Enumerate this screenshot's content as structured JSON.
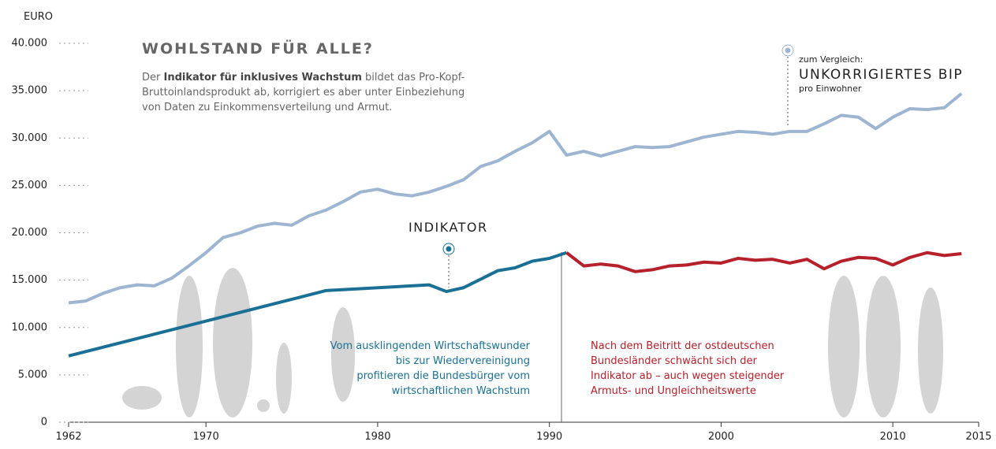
{
  "chart_data": {
    "type": "line",
    "title": "WOHLSTAND FÜR ALLE?",
    "description": {
      "line1": [
        "Der",
        "Indikator für inklusives Wachstum",
        "bildet das Pro-Kopf-"
      ],
      "lines": [
        "Bruttoinlandsprodukt ab, korrigiert es aber unter Einbeziehung",
        "von Daten zu Einkommensverteilung und Armut."
      ]
    },
    "y_axis_label": "EURO",
    "xlim": [
      1962,
      2015
    ],
    "xticks": [
      1962,
      1970,
      1980,
      1990,
      2000,
      2010,
      2015
    ],
    "ylim": [
      0,
      40000
    ],
    "yticks": [
      0,
      {
        "value": 5000,
        "label": "5.000"
      },
      {
        "value": 10000,
        "label": "10.000"
      },
      {
        "value": 15000,
        "label": "15.000"
      },
      {
        "value": 20000,
        "label": "20.000"
      },
      {
        "value": 25000,
        "label": "25.000"
      },
      {
        "value": 30000,
        "label": "30.000"
      },
      {
        "value": 35000,
        "label": "35.000"
      },
      {
        "value": 40000,
        "label": "40.000"
      }
    ],
    "series": [
      {
        "color": "#9db5d0",
        "x": [
          1962,
          1963,
          1964,
          1965,
          1966,
          1967,
          1968,
          1969,
          1970,
          1971,
          1972,
          1973,
          1974,
          1975,
          1976,
          1977,
          1978,
          1979,
          1980,
          1981,
          1982,
          1983,
          1984,
          1985,
          1986,
          1987,
          1988,
          1989,
          1990,
          1991,
          1992,
          1993,
          1994,
          1995,
          1996,
          1997,
          1998,
          1999,
          2000,
          2001,
          2002,
          2003,
          2004,
          2005,
          2006,
          2007,
          2008,
          2009,
          2010,
          2011,
          2012,
          2013,
          2014
        ],
        "values": [
          12600,
          12800,
          13600,
          14200,
          14500,
          14400,
          15200,
          16500,
          17900,
          19500,
          20000,
          20700,
          21000,
          20800,
          21800,
          22400,
          23300,
          24300,
          24600,
          24100,
          23900,
          24300,
          24900,
          25600,
          27000,
          27600,
          28600,
          29500,
          30700,
          28200,
          28600,
          28100,
          28600,
          29100,
          29000,
          29100,
          29600,
          30100,
          30400,
          30700,
          30600,
          30400,
          30700,
          30700,
          31500,
          32400,
          32200,
          31000,
          32200,
          33100,
          33000,
          33200,
          34700
        ]
      },
      {
        "color": "#1a7094",
        "x": [
          1962,
          1977,
          1983,
          1984,
          1985,
          1986,
          1987,
          1988,
          1989,
          1990,
          1991
        ],
        "values": [
          7000,
          13900,
          14500,
          13800,
          14200,
          15100,
          16000,
          16300,
          17000,
          17300,
          17900
        ]
      },
      {
        "color": "#b5202a",
        "x": [
          1991,
          1992,
          1993,
          1994,
          1995,
          1996,
          1997,
          1998,
          1999,
          2000,
          2001,
          2002,
          2003,
          2004,
          2005,
          2006,
          2007,
          2008,
          2009,
          2010,
          2011,
          2012,
          2013,
          2014
        ],
        "values": [
          17900,
          16500,
          16700,
          16500,
          15900,
          16100,
          16500,
          16600,
          16900,
          16800,
          17300,
          17100,
          17200,
          16800,
          17200,
          16200,
          17000,
          17400,
          17300,
          16600,
          17400,
          17900,
          17600,
          17800
        ]
      }
    ],
    "annotations": {
      "bip": [
        "zum Vergleich:",
        "UNKORRIGIERTES BIP",
        "pro Einwohner"
      ],
      "indikator": "INDIKATOR",
      "blue_note": [
        "Vom ausklingenden Wirtschaftswunder",
        "bis zur Wiedervereinigung",
        "profitieren die Bundesbürger vom",
        "wirtschaftlichen Wachstum"
      ],
      "red_note": [
        "Nach dem Beitritt der ostdeutschen",
        "Bundesländer schwächt sich der",
        "Indikator ab – auch wegen steigender",
        "Armuts- und Ungleichheitswerte"
      ]
    }
  }
}
